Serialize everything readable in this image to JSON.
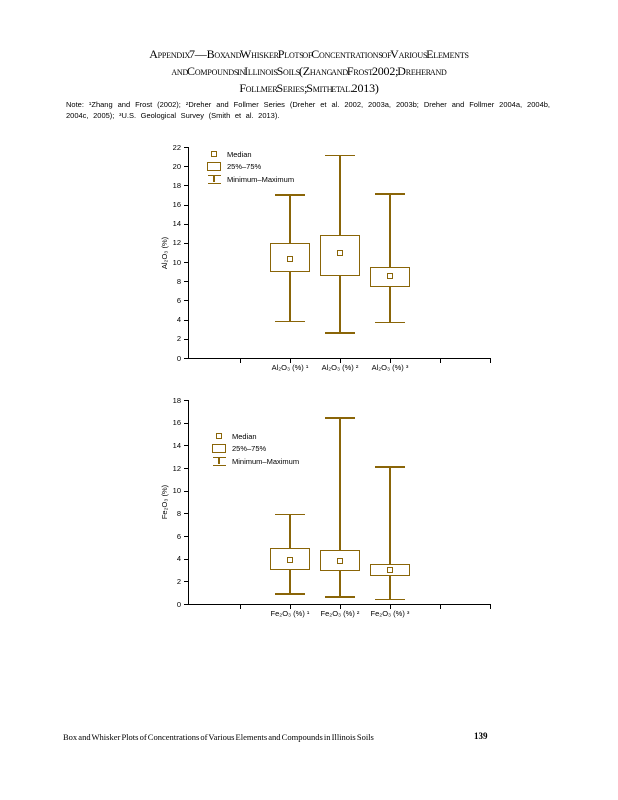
{
  "page": {
    "title_lines": [
      "Appendix 7—Box and Whisker Plots of Concentrations of Various Elements",
      "and Compounds in Illinois Soils (Zhang and Frost 2002; Dreher and",
      "Follmer Series; Smith et al. 2013)"
    ],
    "note_lines": [
      "Note: ¹Zhang and Frost (2002); ²Dreher and Follmer Series (Dreher et al. 2002, 2003a, 2003b; Dreher and Follmer 2004a, 2004b,",
      "2004c, 2005); ³U.S. Geological Survey (Smith et al. 2013)."
    ],
    "footer_text": "Box and Whisker Plots of Concentrations of Various Elements and Compounds in Illinois Soils",
    "page_number": "139"
  },
  "colors": {
    "plot_elements": "#8a6508",
    "axis": "#000000",
    "text": "#000000",
    "background": "#ffffff"
  },
  "chart_data": [
    {
      "type": "boxplot",
      "id": "al2o3",
      "ylabel": "Al₂O₃ (%)",
      "ylim": [
        0,
        22
      ],
      "ytick_step": 2,
      "grid": false,
      "legend_position": "upper-left-inside",
      "legend": [
        "Median",
        "25%–75%",
        "Minimum–Maximum"
      ],
      "categories": [
        "Al₂O₃ (%) ¹",
        "Al₂O₃ (%) ²",
        "Al₂O₃ (%) ³"
      ],
      "series": [
        {
          "name": "Al₂O₃ (%) ¹",
          "min": 3.8,
          "q1": 9.0,
          "median": 10.3,
          "q3": 12.0,
          "max": 17.0
        },
        {
          "name": "Al₂O₃ (%) ²",
          "min": 2.6,
          "q1": 8.6,
          "median": 10.9,
          "q3": 12.8,
          "max": 21.1
        },
        {
          "name": "Al₂O₃ (%) ³",
          "min": 3.7,
          "q1": 7.4,
          "median": 8.6,
          "q3": 9.5,
          "max": 17.1
        }
      ]
    },
    {
      "type": "boxplot",
      "id": "fe2o3",
      "ylabel": "Fe₂O₃ (%)",
      "ylim": [
        0,
        18
      ],
      "ytick_step": 2,
      "grid": false,
      "legend_position": "upper-left-inside",
      "legend": [
        "Median",
        "25%–75%",
        "Minimum–Maximum"
      ],
      "categories": [
        "Fe₂O₃ (%) ¹",
        "Fe₂O₃ (%) ²",
        "Fe₂O₃ (%) ³"
      ],
      "series": [
        {
          "name": "Fe₂O₃ (%) ¹",
          "min": 0.9,
          "q1": 3.0,
          "median": 3.9,
          "q3": 4.9,
          "max": 7.9
        },
        {
          "name": "Fe₂O₃ (%) ²",
          "min": 0.6,
          "q1": 2.9,
          "median": 3.8,
          "q3": 4.8,
          "max": 16.4
        },
        {
          "name": "Fe₂O₃ (%) ³",
          "min": 0.4,
          "q1": 2.5,
          "median": 3.0,
          "q3": 3.5,
          "max": 12.1
        }
      ]
    }
  ]
}
